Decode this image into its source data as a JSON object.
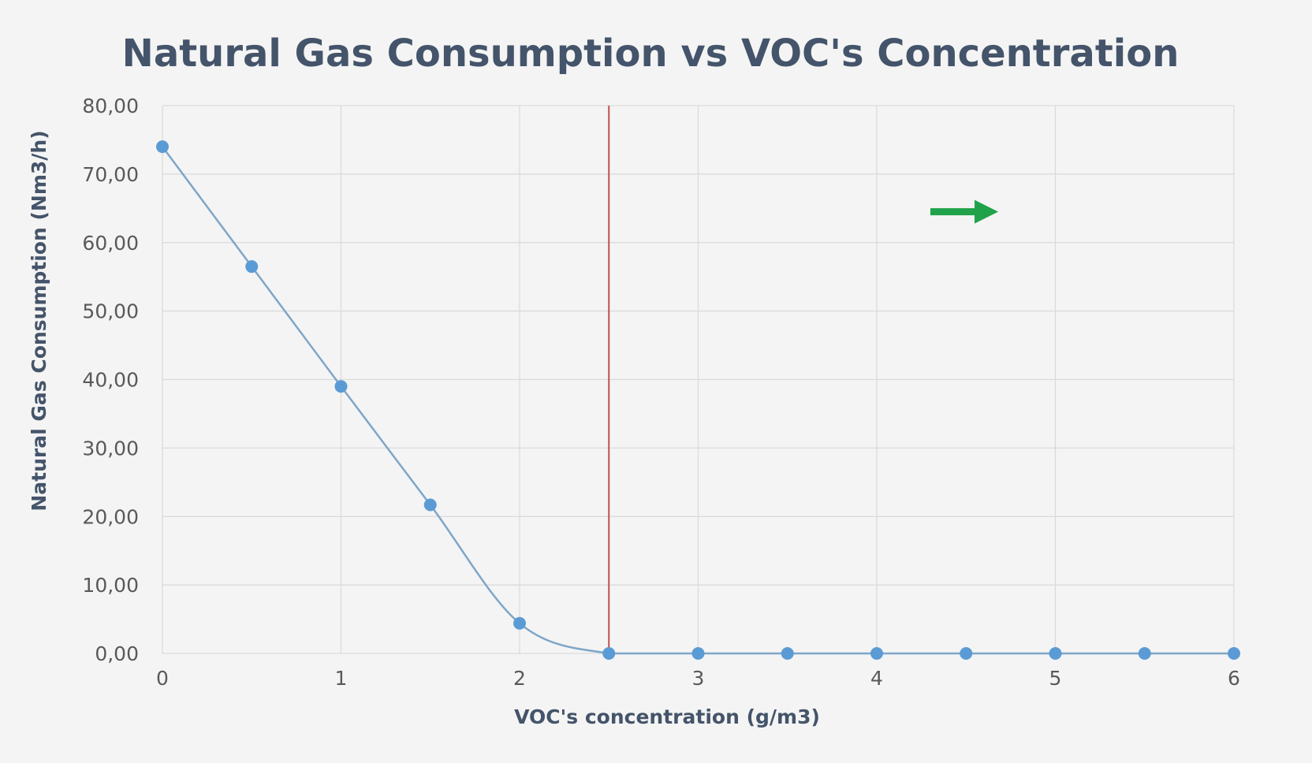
{
  "chart_data": {
    "type": "line",
    "title": "Natural Gas Consumption vs VOC's Concentration",
    "xlabel": "VOC's concentration (g/m3)",
    "ylabel": "Natural Gas Consumption (Nm3/h)",
    "xlim": [
      0,
      6
    ],
    "ylim": [
      0,
      80
    ],
    "x_ticks": [
      "0",
      "1",
      "2",
      "3",
      "4",
      "5",
      "6"
    ],
    "y_ticks": [
      "0,00",
      "10,00",
      "20,00",
      "30,00",
      "40,00",
      "50,00",
      "60,00",
      "70,00",
      "80,00"
    ],
    "grid": true,
    "smooth": true,
    "series": [
      {
        "x": [
          0,
          0.5,
          1,
          1.5,
          2,
          2.5,
          3,
          3.5,
          4,
          4.5,
          5,
          5.5,
          6
        ],
        "y": [
          74,
          56.5,
          39,
          21.7,
          4.4,
          0,
          0,
          0,
          0,
          0,
          0,
          0,
          0
        ]
      }
    ],
    "annotations": [
      {
        "type": "vertical-line",
        "x": 2.5,
        "color": "#c0504d"
      },
      {
        "type": "arrow",
        "direction": "right",
        "x_from": 4.3,
        "x_to": 4.68,
        "y": 64.5,
        "color": "#1fa24a"
      }
    ],
    "colors": {
      "series": "#5b9bd5",
      "series_line": "#7ea6c8",
      "grid": "#d9d9d9",
      "title": "#44546a",
      "tick": "#595959"
    }
  }
}
